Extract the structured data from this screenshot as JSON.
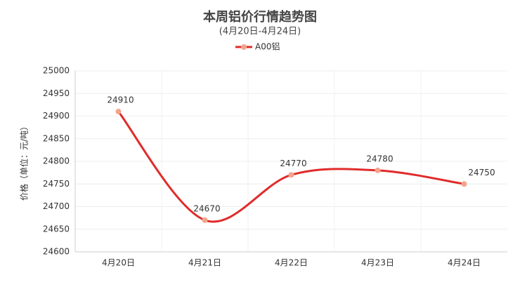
{
  "chart_data": {
    "type": "line",
    "title": "本周铝价行情趋势图",
    "subtitle": "(4月20日-4月24日)",
    "y_label": "价格（单位：元/吨）",
    "categories": [
      "4月20日",
      "4月21日",
      "4月22日",
      "4月23日",
      "4月24日"
    ],
    "series": [
      {
        "name": "A00铝",
        "color": "#e02b2b",
        "marker_color": "#f2a58c",
        "values": [
          24910,
          24670,
          24770,
          24780,
          24750
        ]
      }
    ],
    "ylim": [
      24600,
      25000
    ],
    "yticks": [
      24600,
      24650,
      24700,
      24750,
      24800,
      24850,
      24900,
      24950,
      25000
    ],
    "grid": true,
    "smooth": true
  }
}
